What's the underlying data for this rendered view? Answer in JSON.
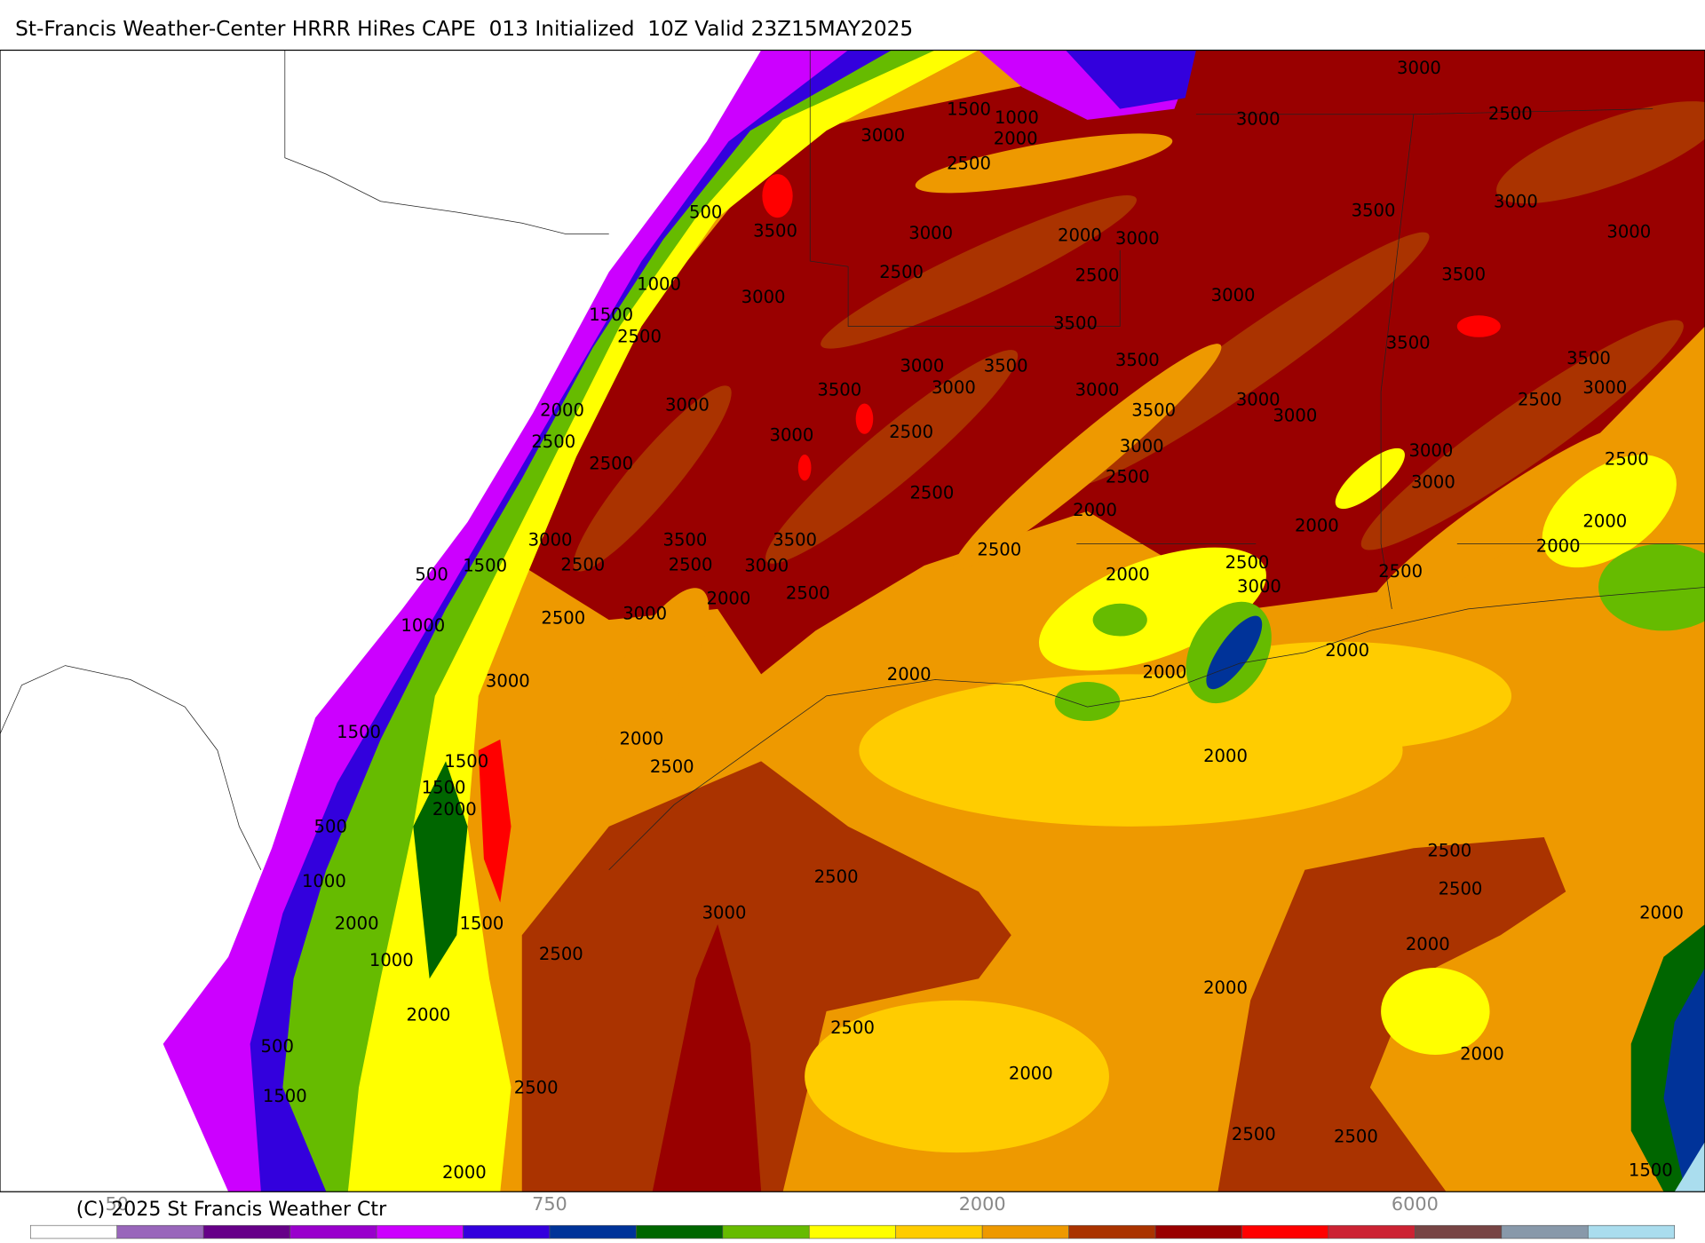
{
  "header": {
    "title": "St-Francis Weather-Center HRRR HiRes CAPE  013 Initialized  10Z Valid 23Z15MAY2025"
  },
  "map": {
    "contour_labels": [
      "3000",
      "2500",
      "3000",
      "1500",
      "1000",
      "2000",
      "3000",
      "2500",
      "500",
      "3500",
      "3000",
      "2000",
      "3000",
      "3500",
      "3000",
      "3000",
      "1000",
      "2500",
      "2500",
      "3000",
      "3000",
      "3500",
      "1500",
      "2500",
      "3500",
      "3500",
      "3500",
      "3000",
      "3500",
      "3500",
      "3500",
      "3000",
      "3000",
      "3000",
      "3000",
      "2000",
      "3000",
      "3500",
      "3000",
      "2500",
      "2500",
      "3000",
      "2500",
      "3000",
      "3000",
      "2500",
      "2500",
      "2500",
      "3000",
      "2500",
      "2000",
      "2000",
      "2000",
      "3000",
      "3500",
      "3500",
      "2500",
      "2000",
      "1500",
      "2500",
      "2500",
      "3000",
      "2000",
      "2500",
      "2500",
      "500",
      "2000",
      "2500",
      "3000",
      "1000",
      "2500",
      "3000",
      "2000",
      "3000",
      "2000",
      "2000",
      "1500",
      "2000",
      "2000",
      "1500",
      "2500",
      "1500",
      "2000",
      "500",
      "2500",
      "2500",
      "1000",
      "2500",
      "3000",
      "2000",
      "2000",
      "1500",
      "2000",
      "1000",
      "2500",
      "2000",
      "2000",
      "2500",
      "500",
      "2000",
      "2000",
      "2500",
      "1500",
      "2500",
      "2500",
      "2000",
      "1500"
    ]
  },
  "colorbar": {
    "labels": [
      "50",
      "750",
      "2000",
      "6000"
    ]
  },
  "footer": {
    "copyright": "(C) 2025 St Francis Weather Ctr"
  }
}
